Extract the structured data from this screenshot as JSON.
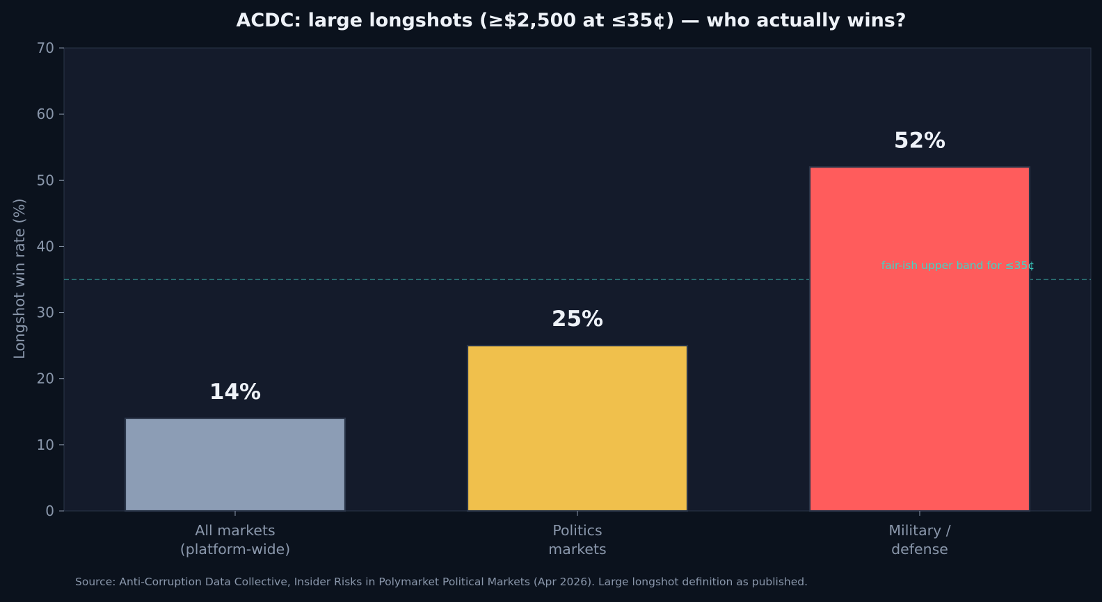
{
  "chart_data": {
    "type": "bar",
    "title": "ACDC: large longshots (≥$2,500 at ≤35¢) — who actually wins?",
    "ylabel": "Longshot win rate (%)",
    "xlabel": "",
    "ylim": [
      0,
      70
    ],
    "yticks": [
      0,
      10,
      20,
      30,
      40,
      50,
      60,
      70
    ],
    "grid": false,
    "categories": [
      [
        "All markets",
        "(platform-wide)"
      ],
      [
        "Politics",
        "markets"
      ],
      [
        "Military /",
        "defense"
      ]
    ],
    "values": [
      14,
      25,
      52
    ],
    "value_labels": [
      "14%",
      "25%",
      "52%"
    ],
    "bar_colors": [
      "#8c9db5",
      "#f0c04c",
      "#ff5c5c"
    ],
    "reference_line": {
      "value": 35,
      "label": "fair-ish upper band for ≤35¢",
      "color": "#3aa6a0"
    },
    "source": "Source: Anti-Corruption Data Collective, Insider Risks in Polymarket Political Markets (Apr 2026). Large longshot definition as published."
  },
  "colors": {
    "background": "#0b121d",
    "plot_background": "#141b2b",
    "axis": "#2a3548",
    "tick_text": "#8a97ab",
    "title_text": "#eef2f8",
    "value_text": "#eef2f8",
    "reference_text": "#3dd6c8"
  }
}
